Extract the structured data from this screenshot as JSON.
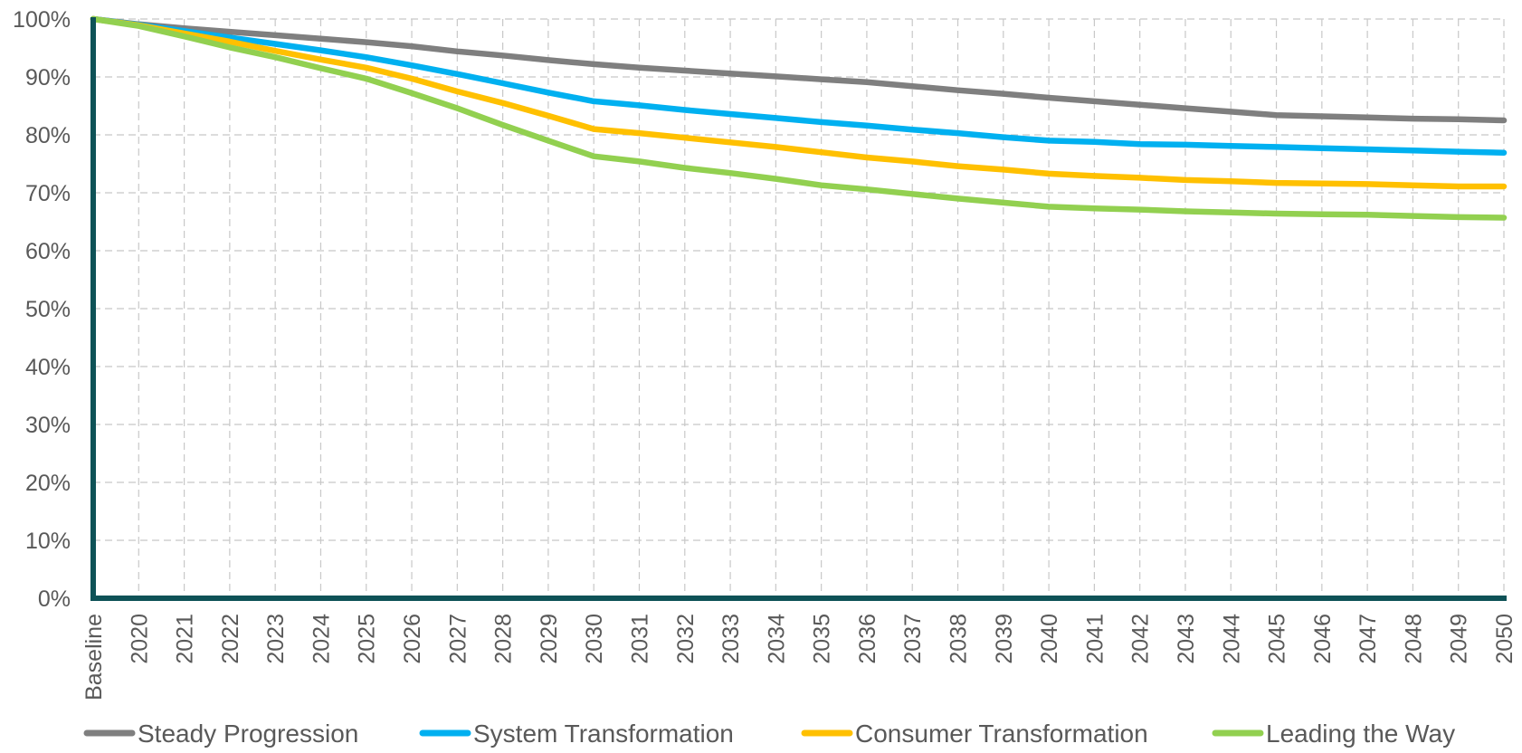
{
  "chart_data": {
    "type": "line",
    "categories": [
      "Baseline",
      "2020",
      "2021",
      "2022",
      "2023",
      "2024",
      "2025",
      "2026",
      "2027",
      "2028",
      "2029",
      "2030",
      "2031",
      "2032",
      "2033",
      "2034",
      "2035",
      "2036",
      "2037",
      "2038",
      "2039",
      "2040",
      "2041",
      "2042",
      "2043",
      "2044",
      "2045",
      "2046",
      "2047",
      "2048",
      "2049",
      "2050"
    ],
    "y_ticks": [
      "0%",
      "10%",
      "20%",
      "30%",
      "40%",
      "50%",
      "60%",
      "70%",
      "80%",
      "90%",
      "100%"
    ],
    "ylim": [
      0,
      100
    ],
    "y_unit": "%",
    "grid": true,
    "legend_position": "bottom",
    "series": [
      {
        "name": "Steady Progression",
        "color": "#7f7f7f",
        "values": [
          100,
          99.1,
          98.4,
          97.8,
          97.2,
          96.6,
          96.0,
          95.3,
          94.4,
          93.7,
          92.9,
          92.2,
          91.6,
          91.1,
          90.6,
          90.1,
          89.6,
          89.1,
          88.4,
          87.7,
          87.1,
          86.4,
          85.8,
          85.2,
          84.6,
          84.0,
          83.4,
          83.2,
          83.0,
          82.8,
          82.7,
          82.5
        ]
      },
      {
        "name": "System Transformation",
        "color": "#00b0f0",
        "values": [
          100,
          99.0,
          97.9,
          96.8,
          95.7,
          94.6,
          93.4,
          92.0,
          90.5,
          88.9,
          87.3,
          85.8,
          85.1,
          84.3,
          83.6,
          82.9,
          82.2,
          81.6,
          80.9,
          80.3,
          79.6,
          79.0,
          78.8,
          78.4,
          78.3,
          78.1,
          77.9,
          77.7,
          77.5,
          77.3,
          77.1,
          76.9
        ]
      },
      {
        "name": "Consumer Transformation",
        "color": "#ffc000",
        "values": [
          100,
          98.9,
          97.5,
          96.1,
          94.5,
          93.0,
          91.6,
          89.7,
          87.5,
          85.5,
          83.3,
          81.0,
          80.3,
          79.5,
          78.7,
          77.9,
          77.0,
          76.1,
          75.4,
          74.6,
          74.0,
          73.3,
          72.9,
          72.6,
          72.2,
          72.0,
          71.7,
          71.6,
          71.5,
          71.3,
          71.1,
          71.1
        ]
      },
      {
        "name": "Leading the Way",
        "color": "#92d050",
        "values": [
          100,
          98.8,
          97.0,
          95.1,
          93.4,
          91.5,
          89.7,
          87.2,
          84.6,
          81.7,
          79.0,
          76.3,
          75.4,
          74.3,
          73.4,
          72.4,
          71.3,
          70.6,
          69.8,
          69.0,
          68.3,
          67.6,
          67.3,
          67.1,
          66.8,
          66.6,
          66.4,
          66.3,
          66.2,
          66.0,
          65.8,
          65.7
        ]
      }
    ]
  }
}
